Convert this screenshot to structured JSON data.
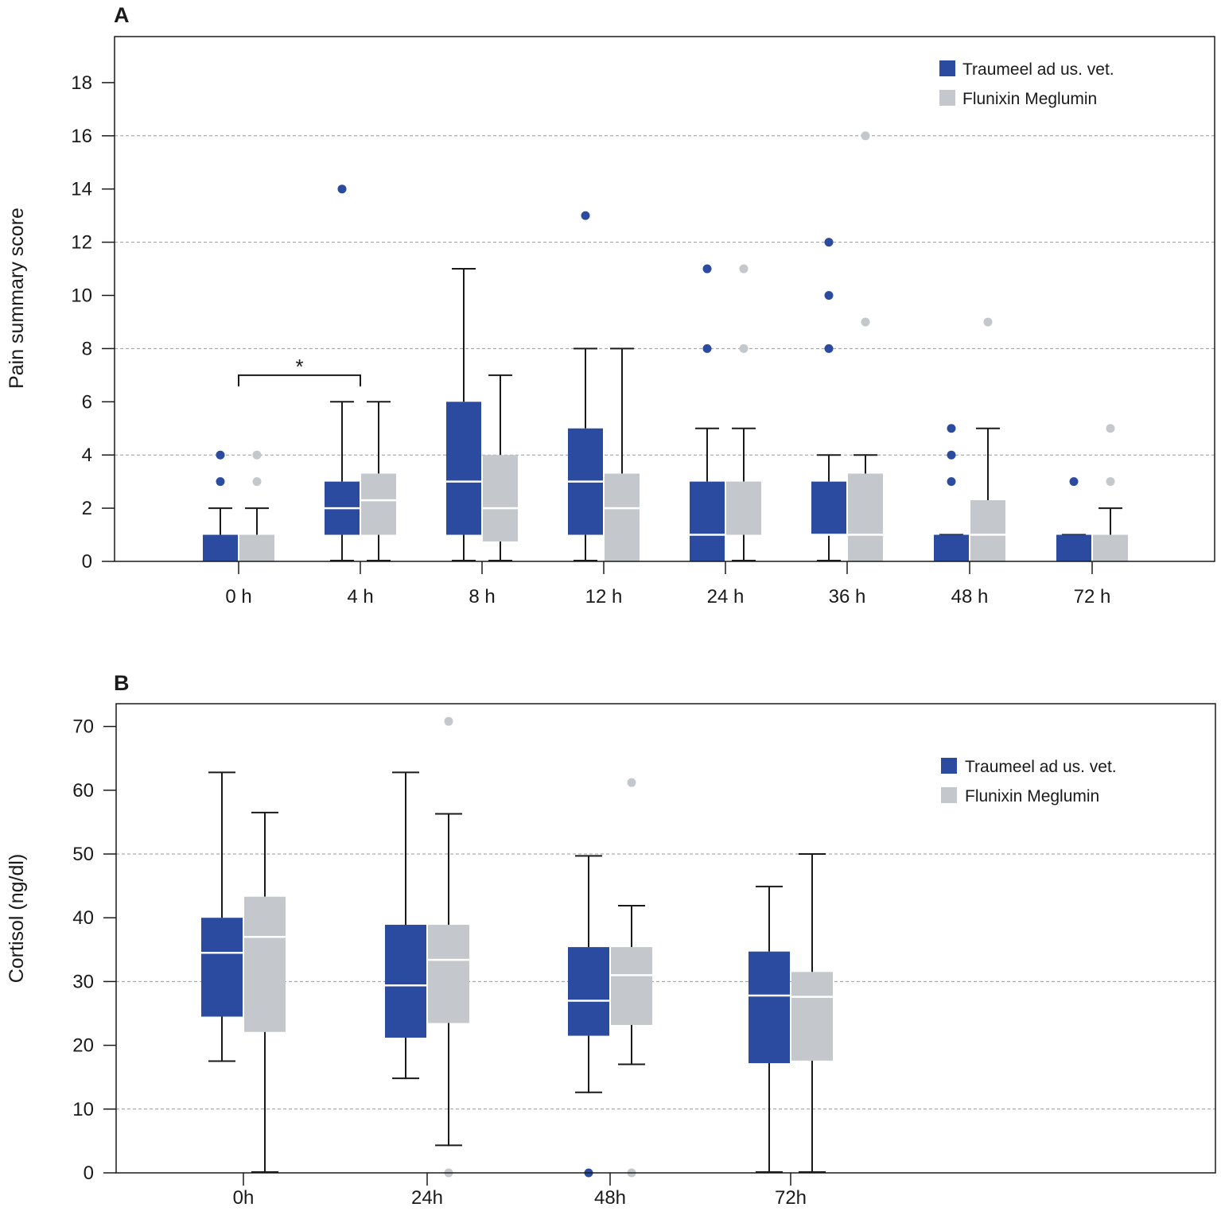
{
  "colors": {
    "treatment": "#2b4ba1",
    "control": "#c4c7cb",
    "text": "#1a1a1a"
  },
  "chart_data": [
    {
      "panel_label": "A",
      "type": "box",
      "ylabel": "Pain summary score",
      "xlabel": "",
      "ylim": [
        0,
        19.8
      ],
      "yticks": [
        0,
        2,
        4,
        6,
        8,
        10,
        12,
        14,
        16,
        18
      ],
      "gridlines": [
        4,
        8,
        12,
        16
      ],
      "categories": [
        "0 h",
        "4 h",
        "8 h",
        "12 h",
        "24 h",
        "36 h",
        "48 h",
        "72 h"
      ],
      "legend": {
        "position": "top-right",
        "entries": [
          "Traumeel ad us. vet.",
          "Flunixin Meglumin"
        ]
      },
      "significance": {
        "from": "0 h",
        "to": "4 h",
        "series": "Traumeel ad us. vet.",
        "label": "*",
        "y": 7
      },
      "series": [
        {
          "name": "Traumeel ad us. vet.",
          "boxes": [
            {
              "min": 0,
              "q1": 0,
              "median": 0,
              "q3": 1,
              "max": 2,
              "outliers": [
                3,
                4
              ]
            },
            {
              "min": 0,
              "q1": 1,
              "median": 2,
              "q3": 3,
              "max": 6,
              "outliers": [
                14
              ]
            },
            {
              "min": 0,
              "q1": 1,
              "median": 3,
              "q3": 6,
              "max": 11,
              "outliers": []
            },
            {
              "min": 0,
              "q1": 1,
              "median": 3,
              "q3": 5,
              "max": 8,
              "outliers": [
                13
              ]
            },
            {
              "min": 0,
              "q1": 0,
              "median": 1,
              "q3": 3,
              "max": 5,
              "outliers": [
                8,
                11
              ]
            },
            {
              "min": 0,
              "q1": 1,
              "median": 1,
              "q3": 3,
              "max": 4,
              "outliers": [
                8,
                10,
                12
              ]
            },
            {
              "min": 0,
              "q1": 0,
              "median": 0,
              "q3": 1,
              "max": 1,
              "outliers": [
                3,
                4,
                5
              ]
            },
            {
              "min": 0,
              "q1": 0,
              "median": 0,
              "q3": 1,
              "max": 1,
              "outliers": [
                3
              ]
            }
          ]
        },
        {
          "name": "Flunixin Meglumin",
          "boxes": [
            {
              "min": 0,
              "q1": 0,
              "median": 0,
              "q3": 1,
              "max": 2,
              "outliers": [
                3,
                4
              ]
            },
            {
              "min": 0,
              "q1": 1,
              "median": 2.3,
              "q3": 3.3,
              "max": 6,
              "outliers": []
            },
            {
              "min": 0,
              "q1": 0.75,
              "median": 2,
              "q3": 4,
              "max": 7,
              "outliers": []
            },
            {
              "min": 0,
              "q1": 0,
              "median": 2,
              "q3": 3.3,
              "max": 8,
              "outliers": []
            },
            {
              "min": 0,
              "q1": 1,
              "median": 3,
              "q3": 3,
              "max": 5,
              "outliers": [
                8,
                11
              ]
            },
            {
              "min": 0,
              "q1": 0,
              "median": 1,
              "q3": 3.3,
              "max": 4,
              "outliers": [
                9,
                16
              ]
            },
            {
              "min": 0,
              "q1": 0,
              "median": 1,
              "q3": 2.3,
              "max": 5,
              "outliers": [
                9
              ]
            },
            {
              "min": 0,
              "q1": 0,
              "median": 0,
              "q3": 1,
              "max": 2,
              "outliers": [
                3,
                5
              ]
            }
          ]
        }
      ]
    },
    {
      "panel_label": "B",
      "type": "box",
      "ylabel": "Cortisol (ng/dl)",
      "xlabel": "",
      "ylim": [
        0,
        73.5
      ],
      "yticks": [
        0,
        10,
        20,
        30,
        40,
        50,
        60,
        70
      ],
      "gridlines": [
        10,
        30,
        50
      ],
      "categories": [
        "0h",
        "24h",
        "48h",
        "72h"
      ],
      "legend": {
        "position": "top-right",
        "entries": [
          "Traumeel ad us. vet.",
          "Flunixin Meglumin"
        ]
      },
      "series": [
        {
          "name": "Traumeel ad us. vet.",
          "boxes": [
            {
              "min": 17.4,
              "q1": 24.5,
              "median": 34.5,
              "q3": 40,
              "max": 62.8,
              "outliers": []
            },
            {
              "min": 14.7,
              "q1": 21.2,
              "median": 29.4,
              "q3": 38.9,
              "max": 62.8,
              "outliers": []
            },
            {
              "min": 12.5,
              "q1": 21.5,
              "median": 27,
              "q3": 35.4,
              "max": 49.7,
              "outliers": [
                0
              ]
            },
            {
              "min": 0,
              "q1": 17.2,
              "median": 27.8,
              "q3": 34.7,
              "max": 44.9,
              "outliers": []
            }
          ]
        },
        {
          "name": "Flunixin Meglumin",
          "boxes": [
            {
              "min": 0,
              "q1": 22.1,
              "median": 37,
              "q3": 43.3,
              "max": 56.5,
              "outliers": []
            },
            {
              "min": 4.2,
              "q1": 23.5,
              "median": 33.4,
              "q3": 38.9,
              "max": 56.3,
              "outliers": [
                0,
                70.8
              ]
            },
            {
              "min": 16.9,
              "q1": 23.2,
              "median": 31,
              "q3": 35.4,
              "max": 41.9,
              "outliers": [
                0,
                61.2
              ]
            },
            {
              "min": 0,
              "q1": 17.6,
              "median": 27.6,
              "q3": 31.5,
              "max": 50,
              "outliers": []
            }
          ]
        }
      ]
    }
  ]
}
